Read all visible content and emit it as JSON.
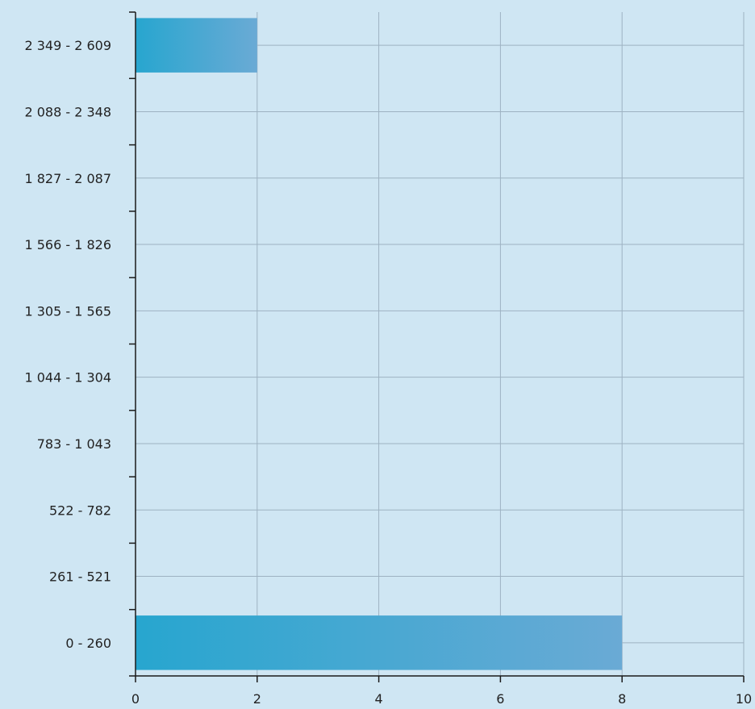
{
  "colors": {
    "background": "#cfe6f3",
    "grid": "#9eb2c2",
    "axis": "#1a1a1a",
    "bar_start": "#27a6cf",
    "bar_end": "#6aaad5"
  },
  "chart_data": {
    "type": "bar",
    "orientation": "horizontal",
    "title": "",
    "xlabel": "",
    "ylabel": "",
    "categories": [
      "0 - 260",
      "261 - 521",
      "522 - 782",
      "783 - 1 043",
      "1 044 - 1 304",
      "1 305 - 1 565",
      "1 566 - 1 826",
      "1 827 - 2 087",
      "2 088 - 2 348",
      "2 349 - 2 609"
    ],
    "values": [
      8,
      0,
      0,
      0,
      0,
      0,
      0,
      0,
      0,
      2
    ],
    "xlim": [
      0,
      10
    ],
    "xticks": [
      0,
      2,
      4,
      6,
      8,
      10
    ],
    "xtick_labels": [
      "0",
      "2",
      "4",
      "6",
      "8",
      "10"
    ],
    "grid": true,
    "legend": "none"
  }
}
